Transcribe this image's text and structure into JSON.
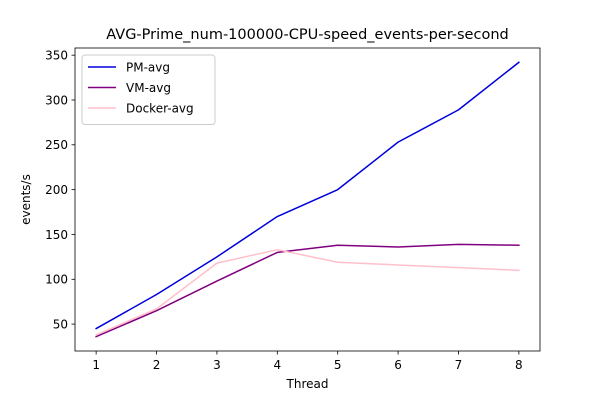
{
  "chart_data": {
    "type": "line",
    "title": "AVG-Prime_num-100000-CPU-speed_events-per-second",
    "xlabel": "Thread",
    "ylabel": "events/s",
    "x": [
      1,
      2,
      3,
      4,
      5,
      6,
      7,
      8
    ],
    "xlim": [
      0.65,
      8.35
    ],
    "ylim": [
      20,
      358
    ],
    "xticks": [
      1,
      2,
      3,
      4,
      5,
      6,
      7,
      8
    ],
    "yticks": [
      50,
      100,
      150,
      200,
      250,
      300,
      350
    ],
    "grid": false,
    "legend_position": "top-left",
    "series": [
      {
        "name": "PM-avg",
        "color": "#0000dd",
        "values": [
          45,
          83,
          125,
          170,
          200,
          253,
          289,
          342
        ]
      },
      {
        "name": "VM-avg",
        "color": "#800080",
        "values": [
          36,
          65,
          98,
          130,
          138,
          136,
          139,
          138
        ]
      },
      {
        "name": "Docker-avg",
        "color": "#ffc0cb",
        "values": [
          38,
          67,
          118,
          133,
          119,
          116,
          113,
          110
        ]
      }
    ]
  }
}
